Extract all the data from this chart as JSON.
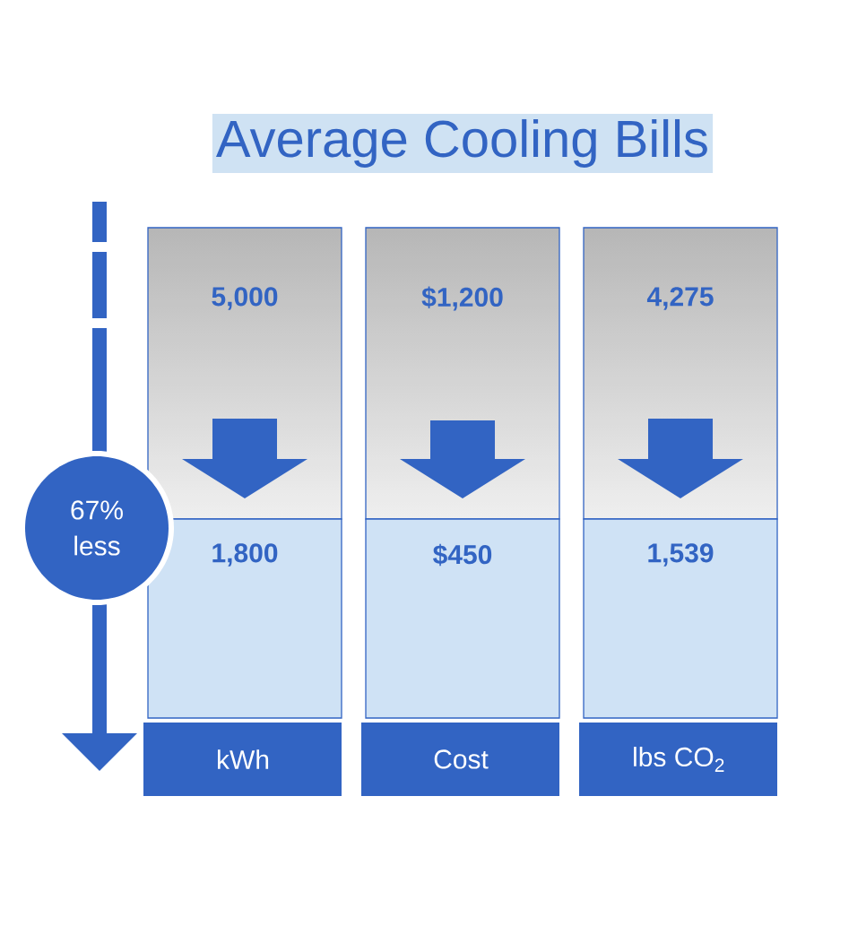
{
  "chart_data": {
    "type": "other",
    "title": "Average Cooling Bills",
    "categories": [
      "kWh",
      "Cost",
      "lbs CO$_{2}$"
    ],
    "series": [
      {
        "color": "#d6d6d6",
        "values": [
          5000,
          1200,
          4275
        ],
        "value_labels": [
          "5,000",
          "$1,200",
          "4,275"
        ]
      },
      {
        "color": "#cfe2f5",
        "values": [
          1800,
          450,
          1539
        ],
        "value_labels": [
          "1,800",
          "$450",
          "1,539"
        ]
      }
    ],
    "annotations": [
      "67% less"
    ]
  }
}
